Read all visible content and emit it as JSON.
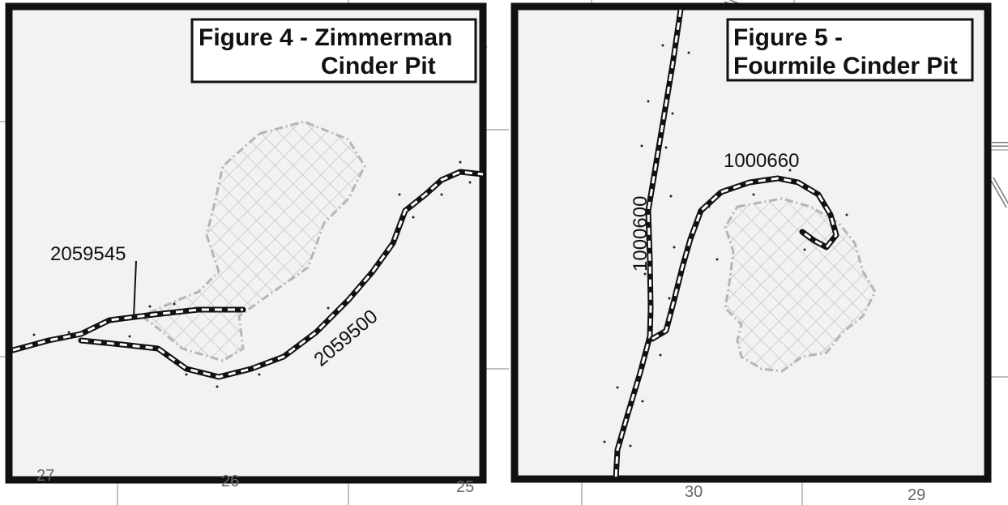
{
  "panels": [
    {
      "title_line1": "Figure 4 - Zimmerman",
      "title_line2": "Cinder Pit",
      "road_labels": [
        "2059545",
        "2059500"
      ],
      "section_numbers": [
        "27",
        "26",
        "25"
      ]
    },
    {
      "title_line1": "Figure 5 -",
      "title_line2": "Fourmile Cinder Pit",
      "road_labels": [
        "1000600",
        "1000660"
      ],
      "section_numbers": [
        "30",
        "29"
      ]
    }
  ],
  "colors": {
    "background": "#f1f2f4",
    "frame": "#111111",
    "pit_hatch": "#b5b5b5",
    "section_lines": "#999999"
  },
  "icons": [
    "road-symbol",
    "cinder-pit-hatch",
    "point-marker"
  ]
}
